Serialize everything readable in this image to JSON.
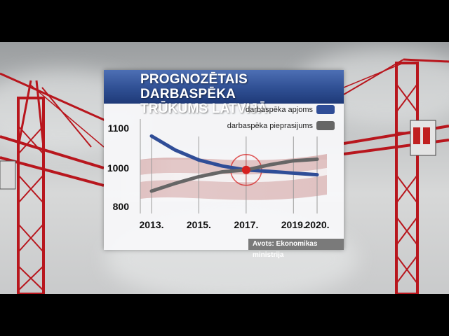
{
  "panel": {
    "title_line1": "PROGNOZĒTAIS DARBASPĒKA",
    "title_line2": "TRŪKUMS LATVIJĀ",
    "source": "Avots: Ekonomikas ministrija"
  },
  "colors": {
    "supply": "#2f4d97",
    "demand": "#666666",
    "intersection": "#d62020"
  },
  "chart_data": {
    "type": "line",
    "title": "PROGNOZĒTAIS DARBASPĒKA TRŪKUMS LATVIJĀ",
    "x_ticks": [
      "2013.",
      "2015.",
      "2017.",
      "2019.",
      "2020."
    ],
    "y_ticks": [
      "1100",
      "1000",
      "800"
    ],
    "ylim": [
      800,
      1100
    ],
    "grid": "vertical",
    "legend_position": "top-right",
    "series": [
      {
        "name": "darbaspēka apjoms",
        "color": "#2f4d97",
        "x": [
          2013,
          2014,
          2015,
          2016,
          2017,
          2018,
          2019,
          2020
        ],
        "values": [
          1080,
          1045,
          1020,
          1005,
          990,
          982,
          973,
          965
        ]
      },
      {
        "name": "darbaspēka pieprasijums",
        "color": "#666666",
        "x": [
          2013,
          2014,
          2015,
          2016,
          2017,
          2018,
          2019,
          2020
        ],
        "values": [
          880,
          920,
          955,
          980,
          990,
          1008,
          1018,
          1022
        ]
      }
    ],
    "intersection": {
      "x": 2017,
      "y": 990
    }
  }
}
